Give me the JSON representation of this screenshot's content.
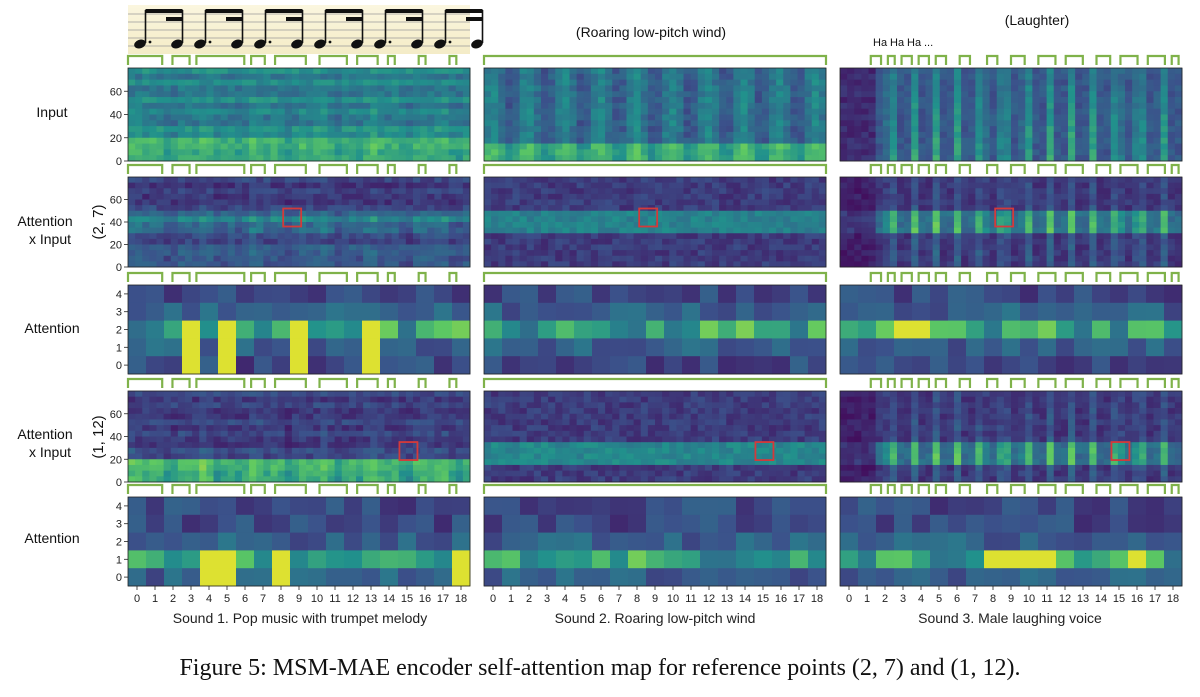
{
  "figure": {
    "caption": "Figure 5: MSM-MAE encoder self-attention map for reference points (2, 7) and (1, 12)."
  },
  "rows": {
    "input": "Input",
    "attn_input_a_line1": "Attention",
    "attn_input_a_line2": "x Input",
    "attn_input_a_ref": "(2, 7)",
    "attention_a": "Attention",
    "attn_input_b_line1": "Attention",
    "attn_input_b_line2": "x Input",
    "attn_input_b_ref": "(1, 12)",
    "attention_b": "Attention"
  },
  "columns": {
    "sound2_note": "(Roaring low-pitch wind)",
    "sound3_note": "(Laughter)",
    "laughs": [
      "Ha",
      "Ha",
      "Ha",
      "..."
    ],
    "xlabels": [
      "Sound 1. Pop music with trumpet melody",
      "Sound 2. Roaring low-pitch wind",
      "Sound 3. Male laughing voice"
    ]
  },
  "chart_data": {
    "type": "heatmap",
    "x_ticks": [
      "0",
      "1",
      "2",
      "3",
      "4",
      "5",
      "6",
      "7",
      "8",
      "9",
      "10",
      "11",
      "12",
      "13",
      "14",
      "15",
      "16",
      "17",
      "18"
    ],
    "spectrogram_y_ticks": [
      "0",
      "20",
      "40",
      "60"
    ],
    "attention_y_ticks": [
      "0",
      "1",
      "2",
      "3",
      "4"
    ],
    "reference_points": [
      [
        2,
        7
      ],
      [
        1,
        12
      ]
    ],
    "colormap": [
      "#440154",
      "#3b528b",
      "#21918c",
      "#5ec962",
      "#fde725"
    ]
  }
}
